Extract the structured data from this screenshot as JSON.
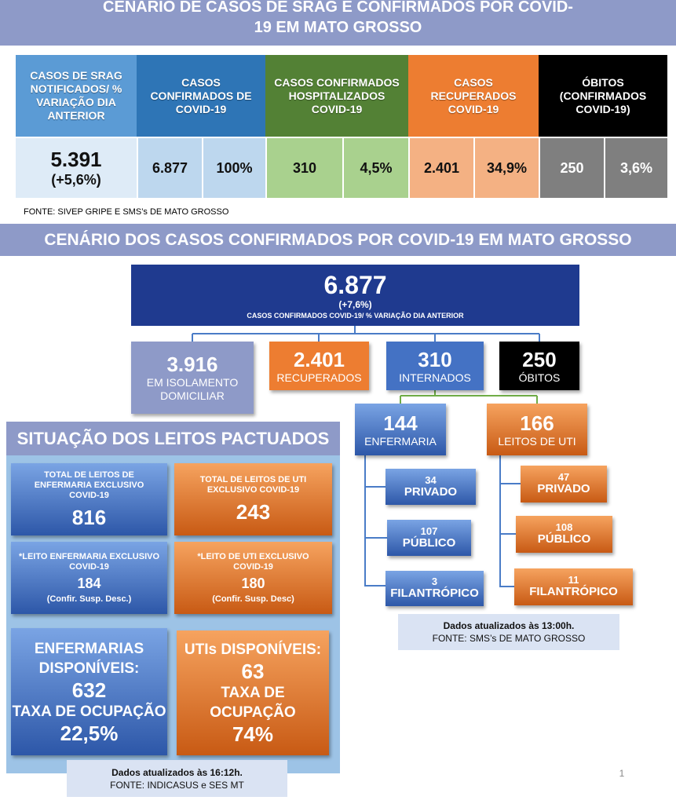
{
  "header": {
    "title": "CENÁRIO DE CASOS DE SRAG E CONFIRMADOS POR COVID-19 EM MATO GROSSO"
  },
  "summary": {
    "headers": [
      "CASOS DE SRAG NOTIFICADOS/ % VARIAÇÃO DIA ANTERIOR",
      "CASOS CONFIRMADOS DE COVID-19",
      "CASOS CONFIRMADOS HOSPITALIZADOS COVID-19",
      "CASOS RECUPERADOS COVID-19",
      "ÓBITOS (CONFIRMADOS COVID-19)"
    ],
    "cells": [
      "5.391",
      "(+5,6%)",
      "6.877",
      "100%",
      "310",
      "4,5%",
      "2.401",
      "34,9%",
      "250",
      "3,6%"
    ],
    "source": "FONTE: SIVEP GRIPE E SMS’s DE MATO GROSSO"
  },
  "section_title": "CENÁRIO DOS CASOS CONFIRMADOS POR COVID-19 EM MATO GROSSO",
  "total": {
    "value": "6.877",
    "change": "(+7,6%)",
    "label": "CASOS CONFIRMADOS COVID-19/ % VARIAÇÃO DIA ANTERIOR"
  },
  "breakdown": [
    {
      "value": "3.916",
      "label": "EM ISOLAMENTO DOMICILIAR"
    },
    {
      "value": "2.401",
      "label": "RECUPERADOS"
    },
    {
      "value": "310",
      "label": "INTERNADOS"
    },
    {
      "value": "250",
      "label": "ÓBITOS"
    }
  ],
  "hospitalized": [
    {
      "value": "144",
      "label": "ENFERMARIA",
      "sub": [
        {
          "value": "34",
          "label": "PRIVADO"
        },
        {
          "value": "107",
          "label": "PÚBLICO"
        },
        {
          "value": "3",
          "label": "FILANTRÓPICO"
        }
      ]
    },
    {
      "value": "166",
      "label": "LEITOS DE UTI",
      "sub": [
        {
          "value": "47",
          "label": "PRIVADO"
        },
        {
          "value": "108",
          "label": "PÚBLICO"
        },
        {
          "value": "11",
          "label": "FILANTRÓPICO"
        }
      ]
    }
  ],
  "update_note": {
    "time": "Dados atualizados às 13:00h.",
    "source": "FONTE: SMS’s DE MATO GROSSO"
  },
  "beds": {
    "title": "SITUAÇÃO DOS LEITOS PACTUADOS",
    "boxes": [
      {
        "label": "TOTAL DE LEITOS DE ENFERMARIA  EXCLUSIVO COVID-19",
        "value": "816"
      },
      {
        "label": "TOTAL DE LEITOS DE UTI EXCLUSIVO COVID-19",
        "value": "243"
      },
      {
        "label": "*LEITO ENFERMARIA EXCLUSIVO COVID-19",
        "value": "184",
        "note": "(Confir. Susp. Desc.)"
      },
      {
        "label": "*LEITO DE UTI EXCLUSIVO COVID-19",
        "value": "180",
        "note": "(Confir. Susp. Desc)"
      }
    ],
    "available": [
      {
        "label": "ENFERMARIAS DISPONÍVEIS:",
        "value": "632",
        "rate_label": "TAXA DE OCUPAÇÃO",
        "rate": "22,5%"
      },
      {
        "label": "UTIs DISPONÍVEIS:",
        "value": "63",
        "rate_label": "TAXA DE OCUPAÇÃO",
        "rate": "74%"
      }
    ],
    "note": {
      "time": "Dados atualizados às 16:12h.",
      "source": "FONTE: INDICASUS e SES MT"
    }
  },
  "page_number": "1"
}
